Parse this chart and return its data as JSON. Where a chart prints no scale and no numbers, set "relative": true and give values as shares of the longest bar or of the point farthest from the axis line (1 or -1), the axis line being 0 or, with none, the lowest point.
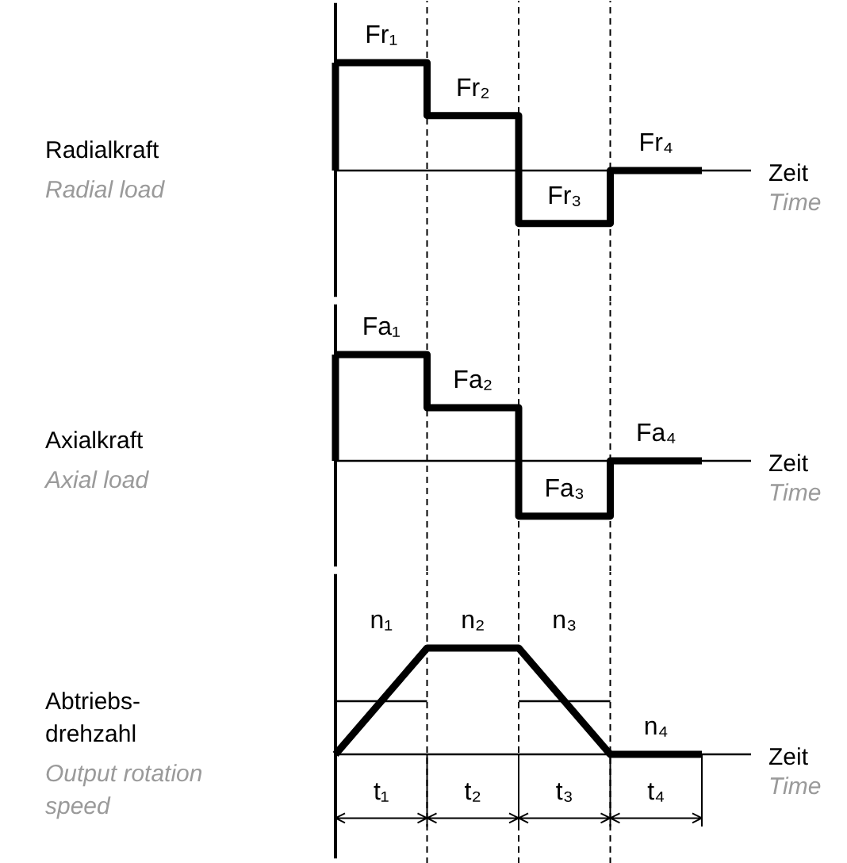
{
  "chart_data": [
    {
      "type": "step",
      "relative": true,
      "ylabel": "Radialkraft",
      "xlabel": "Zeit",
      "grid": "x",
      "categories": [
        null,
        null,
        null,
        null,
        null
      ],
      "series": [
        {
          "color": "#000000",
          "values": [
            1,
            0.51,
            -0.49,
            0,
            0
          ]
        }
      ],
      "annotations": [
        "Fr₁",
        "Fr₂",
        "Fr₃",
        "Fr₄",
        "Radial load",
        "Time"
      ]
    },
    {
      "type": "step",
      "relative": true,
      "ylabel": "Axialkraft",
      "xlabel": "Zeit",
      "grid": "x",
      "categories": [
        null,
        null,
        null,
        null,
        null
      ],
      "series": [
        {
          "color": "#000000",
          "values": [
            1,
            0.5,
            -0.52,
            0,
            0
          ]
        }
      ],
      "annotations": [
        "Fa₁",
        "Fa₂",
        "Fa₃",
        "Fa₄",
        "Axial load",
        "Time"
      ]
    },
    {
      "type": "line",
      "relative": true,
      "ylabel": "Abtriebs-\ndrehzahl",
      "xlabel": "Zeit",
      "grid": "x",
      "categories": [
        null,
        null,
        null,
        null,
        null
      ],
      "series": [
        {
          "color": "#000000",
          "values": [
            0,
            1,
            1,
            0,
            0
          ]
        },
        {
          "color": "#000000",
          "values": [
            0.5,
            0.5,
            null,
            null,
            null
          ]
        },
        {
          "color": "#000000",
          "values": [
            null,
            null,
            0.5,
            0.5,
            null
          ]
        }
      ],
      "annotations": [
        "n₁",
        "n₂",
        "n₃",
        "n₄",
        "t₁",
        "t₂",
        "t₃",
        "t₄",
        "Output rotation\nspeed",
        "Time"
      ]
    }
  ]
}
